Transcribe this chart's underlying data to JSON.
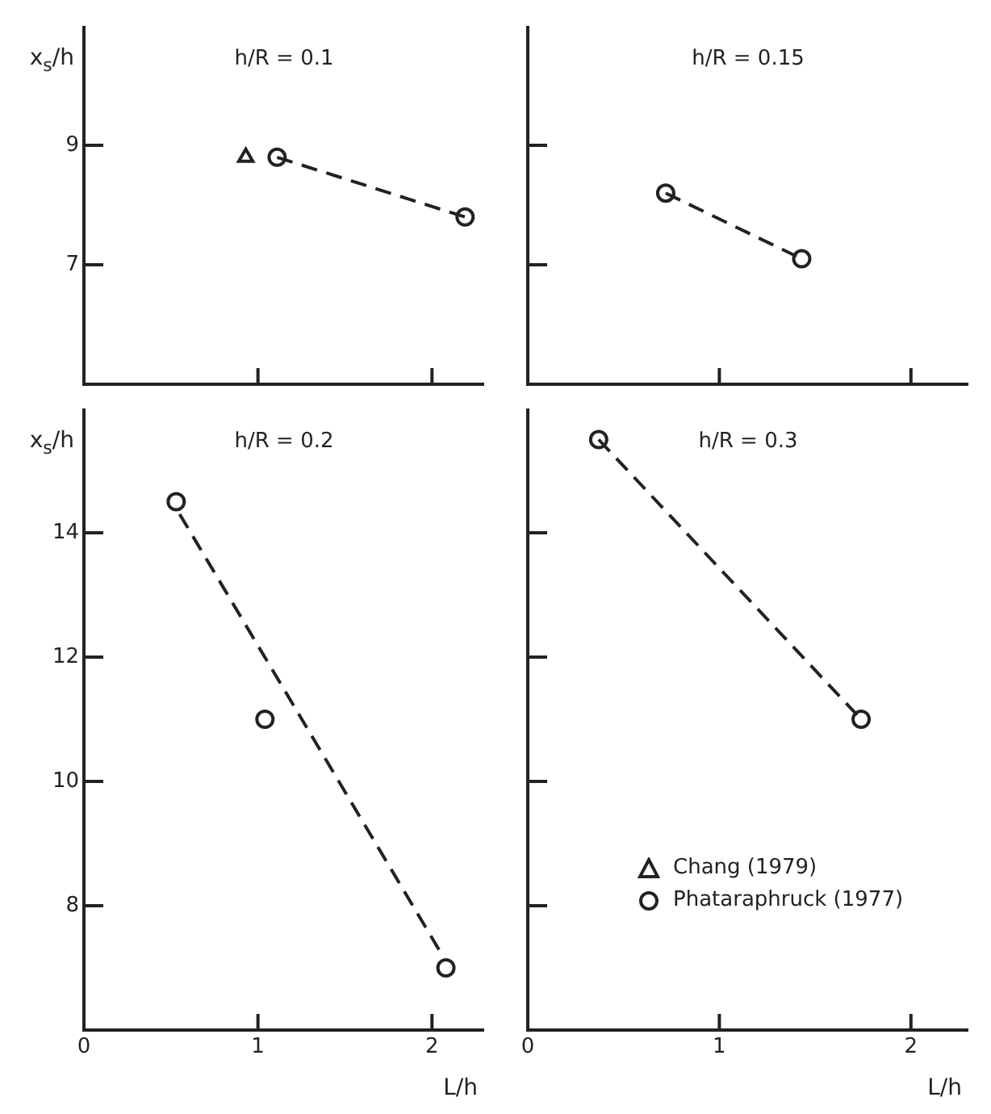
{
  "chart_data": [
    {
      "type": "scatter",
      "title": "h/R = 0.1",
      "ylabel": "x$_{s}$/h",
      "xlim": [
        0,
        2.3
      ],
      "xticks": [
        0,
        1,
        2
      ],
      "ylim": [
        5,
        11
      ],
      "yticks": [
        7,
        9
      ],
      "tick_labels": "y",
      "grid": false,
      "legend": false,
      "series": [
        {
          "name": "Chang (1979)",
          "type": "scatter",
          "marker": "triangle",
          "color": "#222222",
          "x": [
            0.93
          ],
          "values": [
            8.8
          ]
        },
        {
          "type": "line",
          "marker": "circle",
          "line_style": "dashed",
          "color": "#222222",
          "x": [
            1.11,
            2.19
          ],
          "values": [
            8.8,
            7.8
          ]
        }
      ]
    },
    {
      "type": "scatter",
      "title": "h/R = 0.15",
      "xlim": [
        0,
        2.3
      ],
      "xticks": [
        0,
        1,
        2
      ],
      "ylim": [
        5,
        11
      ],
      "yticks": [
        7,
        9
      ],
      "tick_labels": false,
      "grid": false,
      "legend": false,
      "series": [
        {
          "type": "line",
          "marker": "circle",
          "line_style": "dashed",
          "color": "#222222",
          "x": [
            0.72,
            1.43
          ],
          "values": [
            8.2,
            7.1
          ]
        }
      ]
    },
    {
      "type": "scatter",
      "title": "h/R = 0.2",
      "xlabel": "L/h",
      "ylabel": "x$_{s}$/h",
      "xlim": [
        0,
        2.3
      ],
      "xticks": [
        0,
        1,
        2
      ],
      "ylim": [
        6,
        16
      ],
      "yticks": [
        8,
        10,
        12,
        14
      ],
      "grid": false,
      "legend": false,
      "series": [
        {
          "type": "scatter",
          "marker": "circle",
          "color": "#222222",
          "x": [
            0.53,
            1.04,
            2.08
          ],
          "values": [
            14.5,
            11.0,
            7.0
          ]
        },
        {
          "type": "line",
          "marker": "none",
          "line_style": "dashed",
          "color": "#222222",
          "x": [
            0.55,
            2.06
          ],
          "values": [
            14.3,
            7.2
          ]
        }
      ]
    },
    {
      "type": "scatter",
      "title": "h/R = 0.3",
      "xlabel": "L/h",
      "xlim": [
        0,
        2.3
      ],
      "xticks": [
        0,
        1,
        2
      ],
      "ylim": [
        6,
        16
      ],
      "yticks": [
        8,
        10,
        12,
        14
      ],
      "tick_labels": "x",
      "grid": false,
      "legend": "bottom right",
      "series": [
        {
          "name": "Phataraphruck (1977)",
          "type": "line",
          "marker": "circle",
          "line_style": "dashed",
          "color": "#222222",
          "x": [
            0.37,
            1.74
          ],
          "values": [
            15.5,
            11.0
          ]
        }
      ]
    }
  ]
}
